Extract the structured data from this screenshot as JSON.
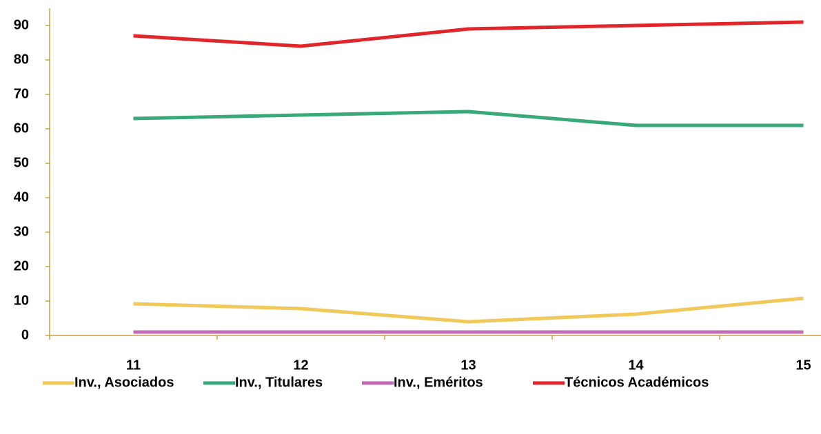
{
  "chart_data": {
    "type": "line",
    "categories": [
      "11",
      "12",
      "13",
      "14",
      "15"
    ],
    "series": [
      {
        "name": "Inv., Asociados",
        "color": "#f0c95a",
        "values": [
          9.2,
          7.8,
          4,
          6.2,
          10.8
        ]
      },
      {
        "name": "Inv., Titulares",
        "color": "#3aa97a",
        "values": [
          63,
          64,
          65,
          61,
          61
        ]
      },
      {
        "name": "Inv., Eméritos",
        "color": "#c06ab5",
        "values": [
          1,
          1,
          1,
          1,
          1
        ]
      },
      {
        "name": "Técnicos Académicos",
        "color": "#e0262a",
        "values": [
          87,
          84,
          89,
          90,
          91
        ]
      }
    ],
    "ylim": [
      0,
      95
    ],
    "yticks": [
      0,
      10,
      20,
      30,
      40,
      50,
      60,
      70,
      80,
      90
    ],
    "axis_color": "#c8a040",
    "legend": "bottom"
  }
}
